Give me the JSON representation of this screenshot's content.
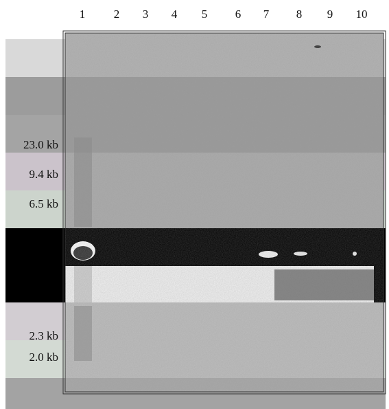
{
  "lanes": [
    "1",
    "2",
    "3",
    "4",
    "5",
    "6",
    "7",
    "8",
    "9",
    "10"
  ],
  "markers": [
    "23.0 kb",
    "9.4 kb",
    "6.5 kb",
    "2.3 kb",
    "2.0 kb"
  ]
}
